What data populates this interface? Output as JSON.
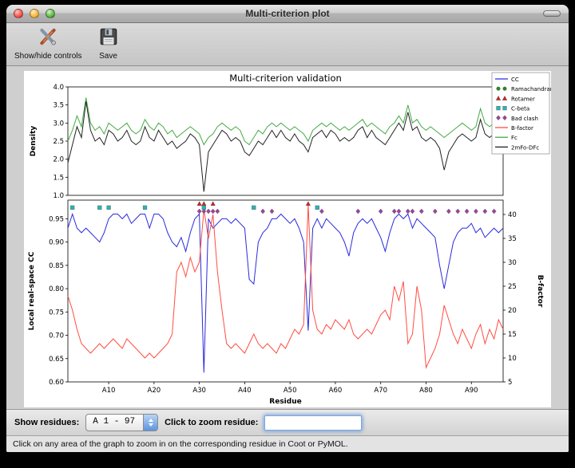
{
  "window": {
    "title": "Multi-criterion plot"
  },
  "toolbar": {
    "items": [
      {
        "label": "Show/hide controls",
        "icon": "tools-icon"
      },
      {
        "label": "Save",
        "icon": "save-icon"
      }
    ]
  },
  "chart_data": [
    {
      "type": "line",
      "title": "Multi-criterion validation",
      "ylabel": "Density",
      "ylim": [
        1.0,
        4.0
      ],
      "yticks": [
        1.0,
        1.5,
        2.0,
        2.5,
        3.0,
        3.5,
        4.0
      ],
      "x_range": [
        1,
        97
      ],
      "series": [
        {
          "name": "Fc",
          "color": "#44aa44",
          "values": [
            2.5,
            2.8,
            3.2,
            2.9,
            3.7,
            3.0,
            2.8,
            2.9,
            2.7,
            3.0,
            2.9,
            2.8,
            2.9,
            3.0,
            2.8,
            2.7,
            2.8,
            3.1,
            2.9,
            2.8,
            3.0,
            2.9,
            2.7,
            2.8,
            2.6,
            2.7,
            2.8,
            2.9,
            2.8,
            2.7,
            2.4,
            2.6,
            2.7,
            2.9,
            3.0,
            2.9,
            2.8,
            2.9,
            2.8,
            2.5,
            2.4,
            2.6,
            2.8,
            2.7,
            2.9,
            3.0,
            2.9,
            3.0,
            2.9,
            2.8,
            2.9,
            2.8,
            2.7,
            2.5,
            2.8,
            2.9,
            3.0,
            2.9,
            3.0,
            2.9,
            2.8,
            2.9,
            2.8,
            2.9,
            3.0,
            3.1,
            2.9,
            3.0,
            2.9,
            2.8,
            2.7,
            2.9,
            3.0,
            3.2,
            3.0,
            3.5,
            3.0,
            3.1,
            2.9,
            2.8,
            2.9,
            2.8,
            2.7,
            2.6,
            2.7,
            2.8,
            2.9,
            3.0,
            2.9,
            2.8,
            2.9,
            3.4,
            3.0,
            2.9,
            3.0,
            3.2,
            2.9
          ]
        },
        {
          "name": "2mFo-DFc",
          "color": "#222222",
          "values": [
            1.9,
            2.4,
            2.9,
            2.6,
            3.6,
            2.8,
            2.5,
            2.6,
            2.4,
            2.8,
            2.7,
            2.5,
            2.6,
            2.8,
            2.5,
            2.4,
            2.5,
            2.9,
            2.6,
            2.5,
            2.8,
            2.6,
            2.4,
            2.5,
            2.3,
            2.4,
            2.5,
            2.7,
            2.6,
            2.4,
            1.1,
            2.2,
            2.4,
            2.6,
            2.8,
            2.7,
            2.5,
            2.6,
            2.5,
            2.2,
            2.1,
            2.3,
            2.5,
            2.4,
            2.6,
            2.8,
            2.6,
            2.8,
            2.6,
            2.5,
            2.7,
            2.5,
            2.4,
            2.2,
            2.6,
            2.7,
            2.8,
            2.6,
            2.8,
            2.7,
            2.5,
            2.6,
            2.5,
            2.6,
            2.8,
            2.9,
            2.6,
            2.8,
            2.6,
            2.5,
            2.4,
            2.6,
            2.8,
            3.0,
            2.8,
            3.3,
            2.8,
            2.9,
            2.6,
            2.5,
            2.6,
            2.5,
            2.3,
            1.7,
            2.2,
            2.4,
            2.6,
            2.7,
            2.6,
            2.5,
            2.6,
            3.1,
            2.7,
            2.6,
            2.7,
            2.9,
            2.4
          ]
        }
      ]
    },
    {
      "type": "line",
      "xlabel": "Residue",
      "ylabel": "Local real-space CC",
      "ylabel_right": "B-factor",
      "ylim": [
        0.6,
        0.99
      ],
      "yticks": [
        0.6,
        0.65,
        0.7,
        0.75,
        0.8,
        0.85,
        0.9,
        0.95
      ],
      "ylim_right": [
        5,
        43
      ],
      "yticks_right": [
        5,
        10,
        15,
        20,
        25,
        30,
        35,
        40
      ],
      "x_range": [
        1,
        97
      ],
      "xticks": [
        10,
        20,
        30,
        40,
        50,
        60,
        70,
        80,
        90
      ],
      "xtick_labels": [
        "A10",
        "A20",
        "A30",
        "A40",
        "A50",
        "A60",
        "A70",
        "A80",
        "A90"
      ],
      "series": [
        {
          "name": "CC",
          "color": "#2a2ae0",
          "axis": "left",
          "values": [
            0.93,
            0.96,
            0.93,
            0.92,
            0.93,
            0.92,
            0.91,
            0.9,
            0.92,
            0.95,
            0.96,
            0.96,
            0.95,
            0.96,
            0.94,
            0.95,
            0.96,
            0.96,
            0.93,
            0.96,
            0.96,
            0.95,
            0.92,
            0.9,
            0.89,
            0.91,
            0.88,
            0.92,
            0.95,
            0.96,
            0.62,
            0.95,
            0.93,
            0.94,
            0.95,
            0.95,
            0.94,
            0.95,
            0.94,
            0.93,
            0.82,
            0.81,
            0.9,
            0.92,
            0.93,
            0.95,
            0.95,
            0.96,
            0.95,
            0.94,
            0.95,
            0.93,
            0.9,
            0.71,
            0.93,
            0.95,
            0.93,
            0.95,
            0.94,
            0.93,
            0.92,
            0.9,
            0.87,
            0.92,
            0.94,
            0.95,
            0.94,
            0.95,
            0.93,
            0.91,
            0.88,
            0.92,
            0.95,
            0.96,
            0.95,
            0.96,
            0.93,
            0.95,
            0.94,
            0.93,
            0.92,
            0.91,
            0.85,
            0.8,
            0.85,
            0.9,
            0.92,
            0.93,
            0.93,
            0.94,
            0.92,
            0.93,
            0.91,
            0.92,
            0.93,
            0.92,
            0.93
          ]
        },
        {
          "name": "B-factor",
          "color": "#ff4d42",
          "axis": "right",
          "values": [
            23,
            20,
            16,
            13,
            12,
            11,
            12,
            13,
            12,
            13,
            14,
            13,
            12,
            14,
            13,
            12,
            11,
            10,
            11,
            10,
            11,
            12,
            13,
            15,
            28,
            30,
            27,
            31,
            28,
            30,
            41,
            35,
            40,
            28,
            20,
            13,
            12,
            13,
            12,
            11,
            13,
            15,
            13,
            12,
            13,
            12,
            11,
            13,
            12,
            14,
            16,
            15,
            17,
            42,
            20,
            16,
            15,
            17,
            16,
            18,
            17,
            16,
            18,
            15,
            14,
            15,
            16,
            15,
            17,
            19,
            20,
            18,
            25,
            22,
            26,
            13,
            15,
            25,
            20,
            8,
            10,
            12,
            15,
            21,
            18,
            15,
            13,
            16,
            14,
            12,
            15,
            17,
            13,
            16,
            14,
            18,
            16
          ]
        }
      ],
      "markers": [
        {
          "name": "Rotamer",
          "shape": "triangle",
          "color": "#cc2222",
          "y": 0.982,
          "x": [
            30,
            31,
            33,
            54
          ]
        },
        {
          "name": "C-beta",
          "shape": "square",
          "color": "#2ab5b5",
          "y": 0.974,
          "x": [
            2,
            8,
            10,
            18,
            31,
            42,
            56
          ]
        },
        {
          "name": "Bad clash",
          "shape": "diamond",
          "color": "#a040a0",
          "y": 0.966,
          "x": [
            30,
            31,
            32,
            33,
            34,
            44,
            46,
            57,
            65,
            70,
            73,
            74,
            76,
            77,
            79,
            82,
            85,
            87,
            89,
            91,
            93,
            95
          ]
        }
      ]
    }
  ],
  "legend": {
    "items": [
      {
        "label": "CC",
        "type": "line",
        "color": "#2a2ae0"
      },
      {
        "label": "Ramachandran",
        "type": "circle",
        "color": "#228b22"
      },
      {
        "label": "Rotamer",
        "type": "triangle",
        "color": "#cc2222"
      },
      {
        "label": "C-beta",
        "type": "square",
        "color": "#2ab5b5"
      },
      {
        "label": "Bad clash",
        "type": "diamond",
        "color": "#a040a0"
      },
      {
        "label": "B-factor",
        "type": "line",
        "color": "#ff4d42"
      },
      {
        "label": "Fc",
        "type": "line",
        "color": "#44aa44"
      },
      {
        "label": "2mFo-DFc",
        "type": "line",
        "color": "#222222"
      }
    ]
  },
  "controls": {
    "show_residues_label": "Show residues:",
    "residue_range_value": "A  1 - 97",
    "zoom_label": "Click to zoom residue:",
    "zoom_value": ""
  },
  "status_bar": {
    "text": "Click on any area of the graph to zoom in on the corresponding residue in Coot or PyMOL."
  }
}
